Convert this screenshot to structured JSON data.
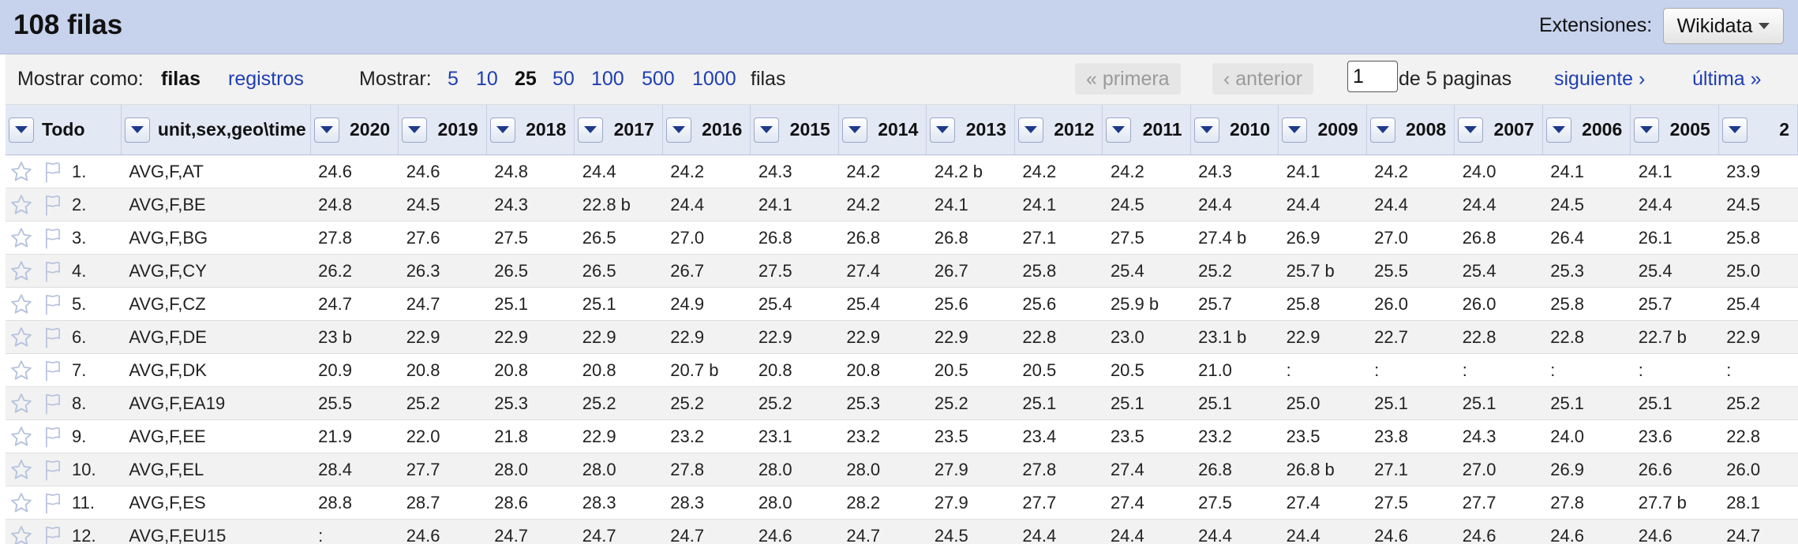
{
  "header": {
    "title": "108 filas",
    "extensions_label": "Extensiones:",
    "extensions_button": "Wikidata"
  },
  "controls": {
    "show_as_label": "Mostrar como:",
    "show_as_rows": "filas",
    "show_as_records": "registros",
    "show_label": "Mostrar:",
    "page_sizes": [
      "5",
      "10",
      "25",
      "50",
      "100",
      "500",
      "1000"
    ],
    "page_size_selected": "25",
    "rows_suffix": "filas",
    "first": "« primera",
    "previous": "‹ anterior",
    "page_value": "1",
    "of_pages": "de 5 paginas",
    "next": "siguiente ›",
    "last": "última »"
  },
  "table": {
    "all_label": "Todo",
    "key_column": "unit,sex,geo\\time",
    "years": [
      "2020",
      "2019",
      "2018",
      "2017",
      "2016",
      "2015",
      "2014",
      "2013",
      "2012",
      "2011",
      "2010",
      "2009",
      "2008",
      "2007",
      "2006",
      "2005",
      "2"
    ],
    "rows": [
      {
        "n": "1.",
        "key": "AVG,F,AT",
        "v": [
          "24.6",
          "24.6",
          "24.8",
          "24.4",
          "24.2",
          "24.3",
          "24.2",
          "24.2 b",
          "24.2",
          "24.2",
          "24.3",
          "24.1",
          "24.2",
          "24.0",
          "24.1",
          "24.1",
          "23.9"
        ]
      },
      {
        "n": "2.",
        "key": "AVG,F,BE",
        "v": [
          "24.8",
          "24.5",
          "24.3",
          "22.8 b",
          "24.4",
          "24.1",
          "24.2",
          "24.1",
          "24.1",
          "24.5",
          "24.4",
          "24.4",
          "24.4",
          "24.4",
          "24.5",
          "24.4",
          "24.5"
        ]
      },
      {
        "n": "3.",
        "key": "AVG,F,BG",
        "v": [
          "27.8",
          "27.6",
          "27.5",
          "26.5",
          "27.0",
          "26.8",
          "26.8",
          "26.8",
          "27.1",
          "27.5",
          "27.4 b",
          "26.9",
          "27.0",
          "26.8",
          "26.4",
          "26.1",
          "25.8"
        ]
      },
      {
        "n": "4.",
        "key": "AVG,F,CY",
        "v": [
          "26.2",
          "26.3",
          "26.5",
          "26.5",
          "26.7",
          "27.5",
          "27.4",
          "26.7",
          "25.8",
          "25.4",
          "25.2",
          "25.7 b",
          "25.5",
          "25.4",
          "25.3",
          "25.4",
          "25.0"
        ]
      },
      {
        "n": "5.",
        "key": "AVG,F,CZ",
        "v": [
          "24.7",
          "24.7",
          "25.1",
          "25.1",
          "24.9",
          "25.4",
          "25.4",
          "25.6",
          "25.6",
          "25.9 b",
          "25.7",
          "25.8",
          "26.0",
          "26.0",
          "25.8",
          "25.7",
          "25.4"
        ]
      },
      {
        "n": "6.",
        "key": "AVG,F,DE",
        "v": [
          "23 b",
          "22.9",
          "22.9",
          "22.9",
          "22.9",
          "22.9",
          "22.9",
          "22.9",
          "22.8",
          "23.0",
          "23.1 b",
          "22.9",
          "22.7",
          "22.8",
          "22.8",
          "22.7 b",
          "22.9"
        ]
      },
      {
        "n": "7.",
        "key": "AVG,F,DK",
        "v": [
          "20.9",
          "20.8",
          "20.8",
          "20.8",
          "20.7 b",
          "20.8",
          "20.8",
          "20.5",
          "20.5",
          "20.5",
          "21.0",
          ":",
          ":",
          ":",
          ":",
          ":",
          ":"
        ]
      },
      {
        "n": "8.",
        "key": "AVG,F,EA19",
        "v": [
          "25.5",
          "25.2",
          "25.3",
          "25.2",
          "25.2",
          "25.2",
          "25.3",
          "25.2",
          "25.1",
          "25.1",
          "25.1",
          "25.0",
          "25.1",
          "25.1",
          "25.1",
          "25.1",
          "25.2"
        ]
      },
      {
        "n": "9.",
        "key": "AVG,F,EE",
        "v": [
          "21.9",
          "22.0",
          "21.8",
          "22.9",
          "23.2",
          "23.1",
          "23.2",
          "23.5",
          "23.4",
          "23.5",
          "23.2",
          "23.5",
          "23.8",
          "24.3",
          "24.0",
          "23.6",
          "22.8"
        ]
      },
      {
        "n": "10.",
        "key": "AVG,F,EL",
        "v": [
          "28.4",
          "27.7",
          "28.0",
          "28.0",
          "27.8",
          "28.0",
          "28.0",
          "27.9",
          "27.8",
          "27.4",
          "26.8",
          "26.8 b",
          "27.1",
          "27.0",
          "26.9",
          "26.6",
          "26.0"
        ]
      },
      {
        "n": "11.",
        "key": "AVG,F,ES",
        "v": [
          "28.8",
          "28.7",
          "28.6",
          "28.3",
          "28.3",
          "28.0",
          "28.2",
          "27.9",
          "27.7",
          "27.4",
          "27.5",
          "27.4",
          "27.5",
          "27.7",
          "27.8",
          "27.7 b",
          "28.1"
        ]
      },
      {
        "n": "12.",
        "key": "AVG,F,EU15",
        "v": [
          ":",
          "24.6",
          "24.7",
          "24.7",
          "24.7",
          "24.6",
          "24.7",
          "24.5",
          "24.4",
          "24.4",
          "24.4",
          "24.4",
          "24.6",
          "24.6",
          "24.6",
          "24.6",
          "24.7"
        ]
      }
    ]
  }
}
